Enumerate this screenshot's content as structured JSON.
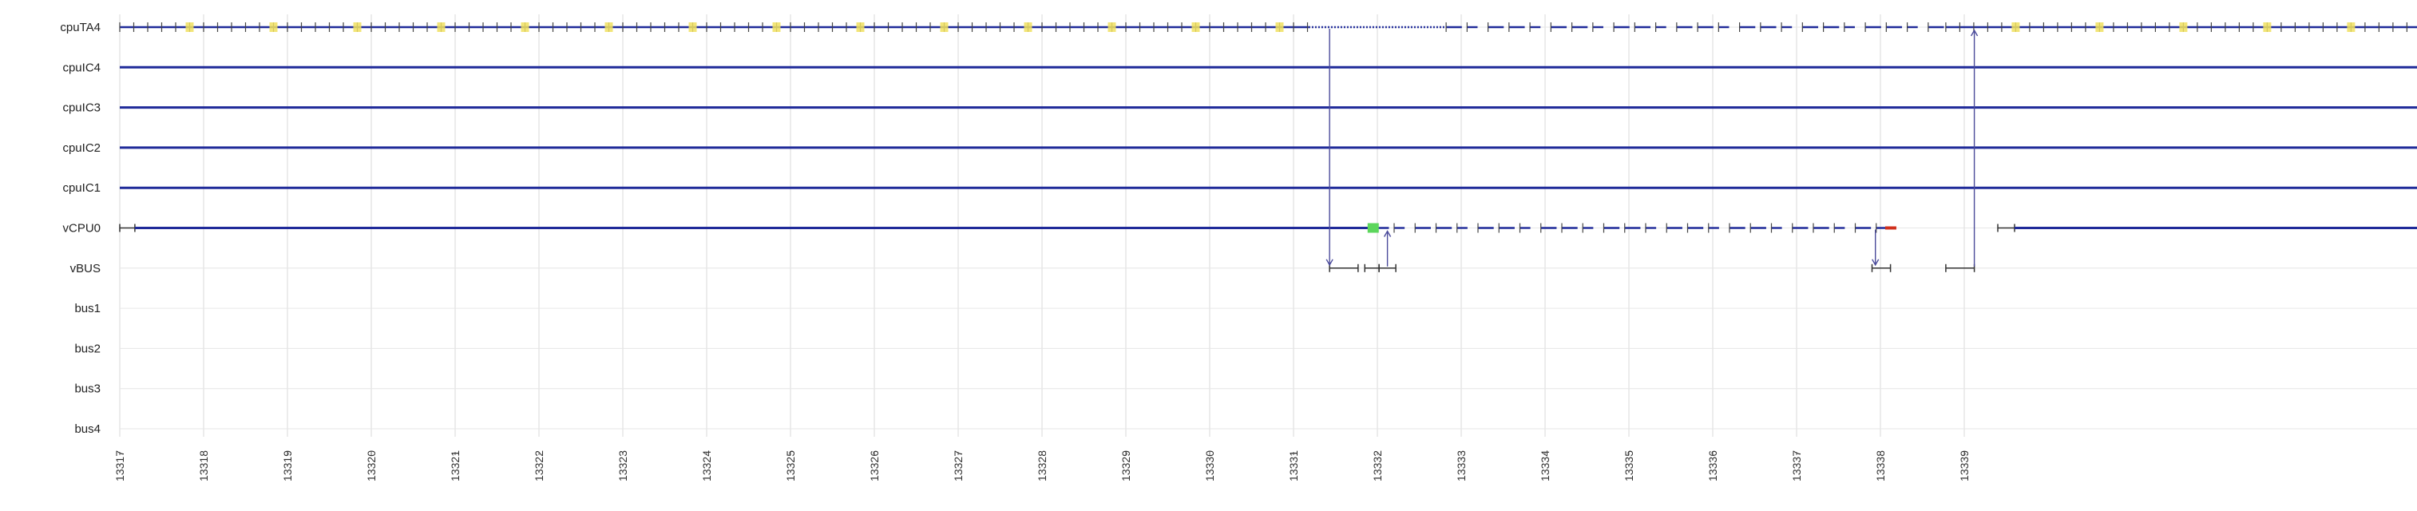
{
  "chart_data": {
    "type": "timeline",
    "title": "",
    "xlabel": "",
    "ylabel": "",
    "grid": true,
    "x_ticks": [
      "13317",
      "13318",
      "13319",
      "13320",
      "13321",
      "13322",
      "13323",
      "13324",
      "13325",
      "13326",
      "13327",
      "13328",
      "13329",
      "13330",
      "13331",
      "13332",
      "13333",
      "13334",
      "13335",
      "13336",
      "13337",
      "13338",
      "13339"
    ],
    "rows": [
      {
        "label": "cpuTA4",
        "segments": [
          {
            "start": 0.0,
            "end": 14.18,
            "style": "ticked",
            "note": "yellow marks near each tick"
          },
          {
            "start": 14.18,
            "end": 15.82,
            "style": "dotted"
          },
          {
            "start": 15.82,
            "end": 21.78,
            "style": "sparse"
          },
          {
            "start": 21.78,
            "end": 27.5,
            "style": "ticked",
            "note": "yellow marks near each tick"
          }
        ]
      },
      {
        "label": "cpuIC4",
        "segments": [
          {
            "start": 0.0,
            "end": 27.5,
            "style": "solid"
          }
        ]
      },
      {
        "label": "cpuIC3",
        "segments": [
          {
            "start": 0.0,
            "end": 27.5,
            "style": "solid"
          }
        ]
      },
      {
        "label": "cpuIC2",
        "segments": [
          {
            "start": 0.0,
            "end": 27.5,
            "style": "solid"
          }
        ]
      },
      {
        "label": "cpuIC1",
        "segments": [
          {
            "start": 0.0,
            "end": 27.5,
            "style": "solid"
          }
        ]
      },
      {
        "label": "vCPU0",
        "segments": [
          {
            "start": 0.0,
            "end": 0.18,
            "style": "marker"
          },
          {
            "start": 0.18,
            "end": 14.95,
            "style": "solid"
          },
          {
            "start": 14.95,
            "end": 21.19,
            "style": "sparse",
            "start_marker": "green",
            "end_marker": "red"
          },
          {
            "start": 22.4,
            "end": 22.6,
            "style": "marker"
          },
          {
            "start": 22.6,
            "end": 27.5,
            "style": "solid"
          }
        ]
      },
      {
        "label": "vBUS",
        "segments": [
          {
            "start": 14.43,
            "end": 14.77,
            "style": "marker"
          },
          {
            "start": 14.85,
            "end": 15.02,
            "style": "marker"
          },
          {
            "start": 15.02,
            "end": 15.22,
            "style": "marker"
          },
          {
            "start": 20.9,
            "end": 21.12,
            "style": "marker"
          },
          {
            "start": 21.78,
            "end": 22.12,
            "style": "marker"
          }
        ]
      },
      {
        "label": "bus1",
        "segments": []
      },
      {
        "label": "bus2",
        "segments": []
      },
      {
        "label": "bus3",
        "segments": []
      },
      {
        "label": "bus4",
        "segments": []
      }
    ],
    "arrows": [
      {
        "x": 14.43,
        "from": "cpuTA4",
        "to": "vBUS"
      },
      {
        "x": 15.12,
        "from": "vBUS",
        "to": "vCPU0"
      },
      {
        "x": 20.94,
        "from": "vCPU0",
        "to": "vBUS"
      },
      {
        "x": 22.12,
        "from": "vBUS",
        "to": "cpuTA4"
      }
    ],
    "colors": {
      "line": "#1f2a99",
      "grid": "#e6e6e6",
      "tick_mark": "#444444",
      "highlight": "#f0e060",
      "start_marker": "#5cd65c",
      "end_marker": "#d0301c",
      "arrow": "#4a4a9a"
    }
  }
}
